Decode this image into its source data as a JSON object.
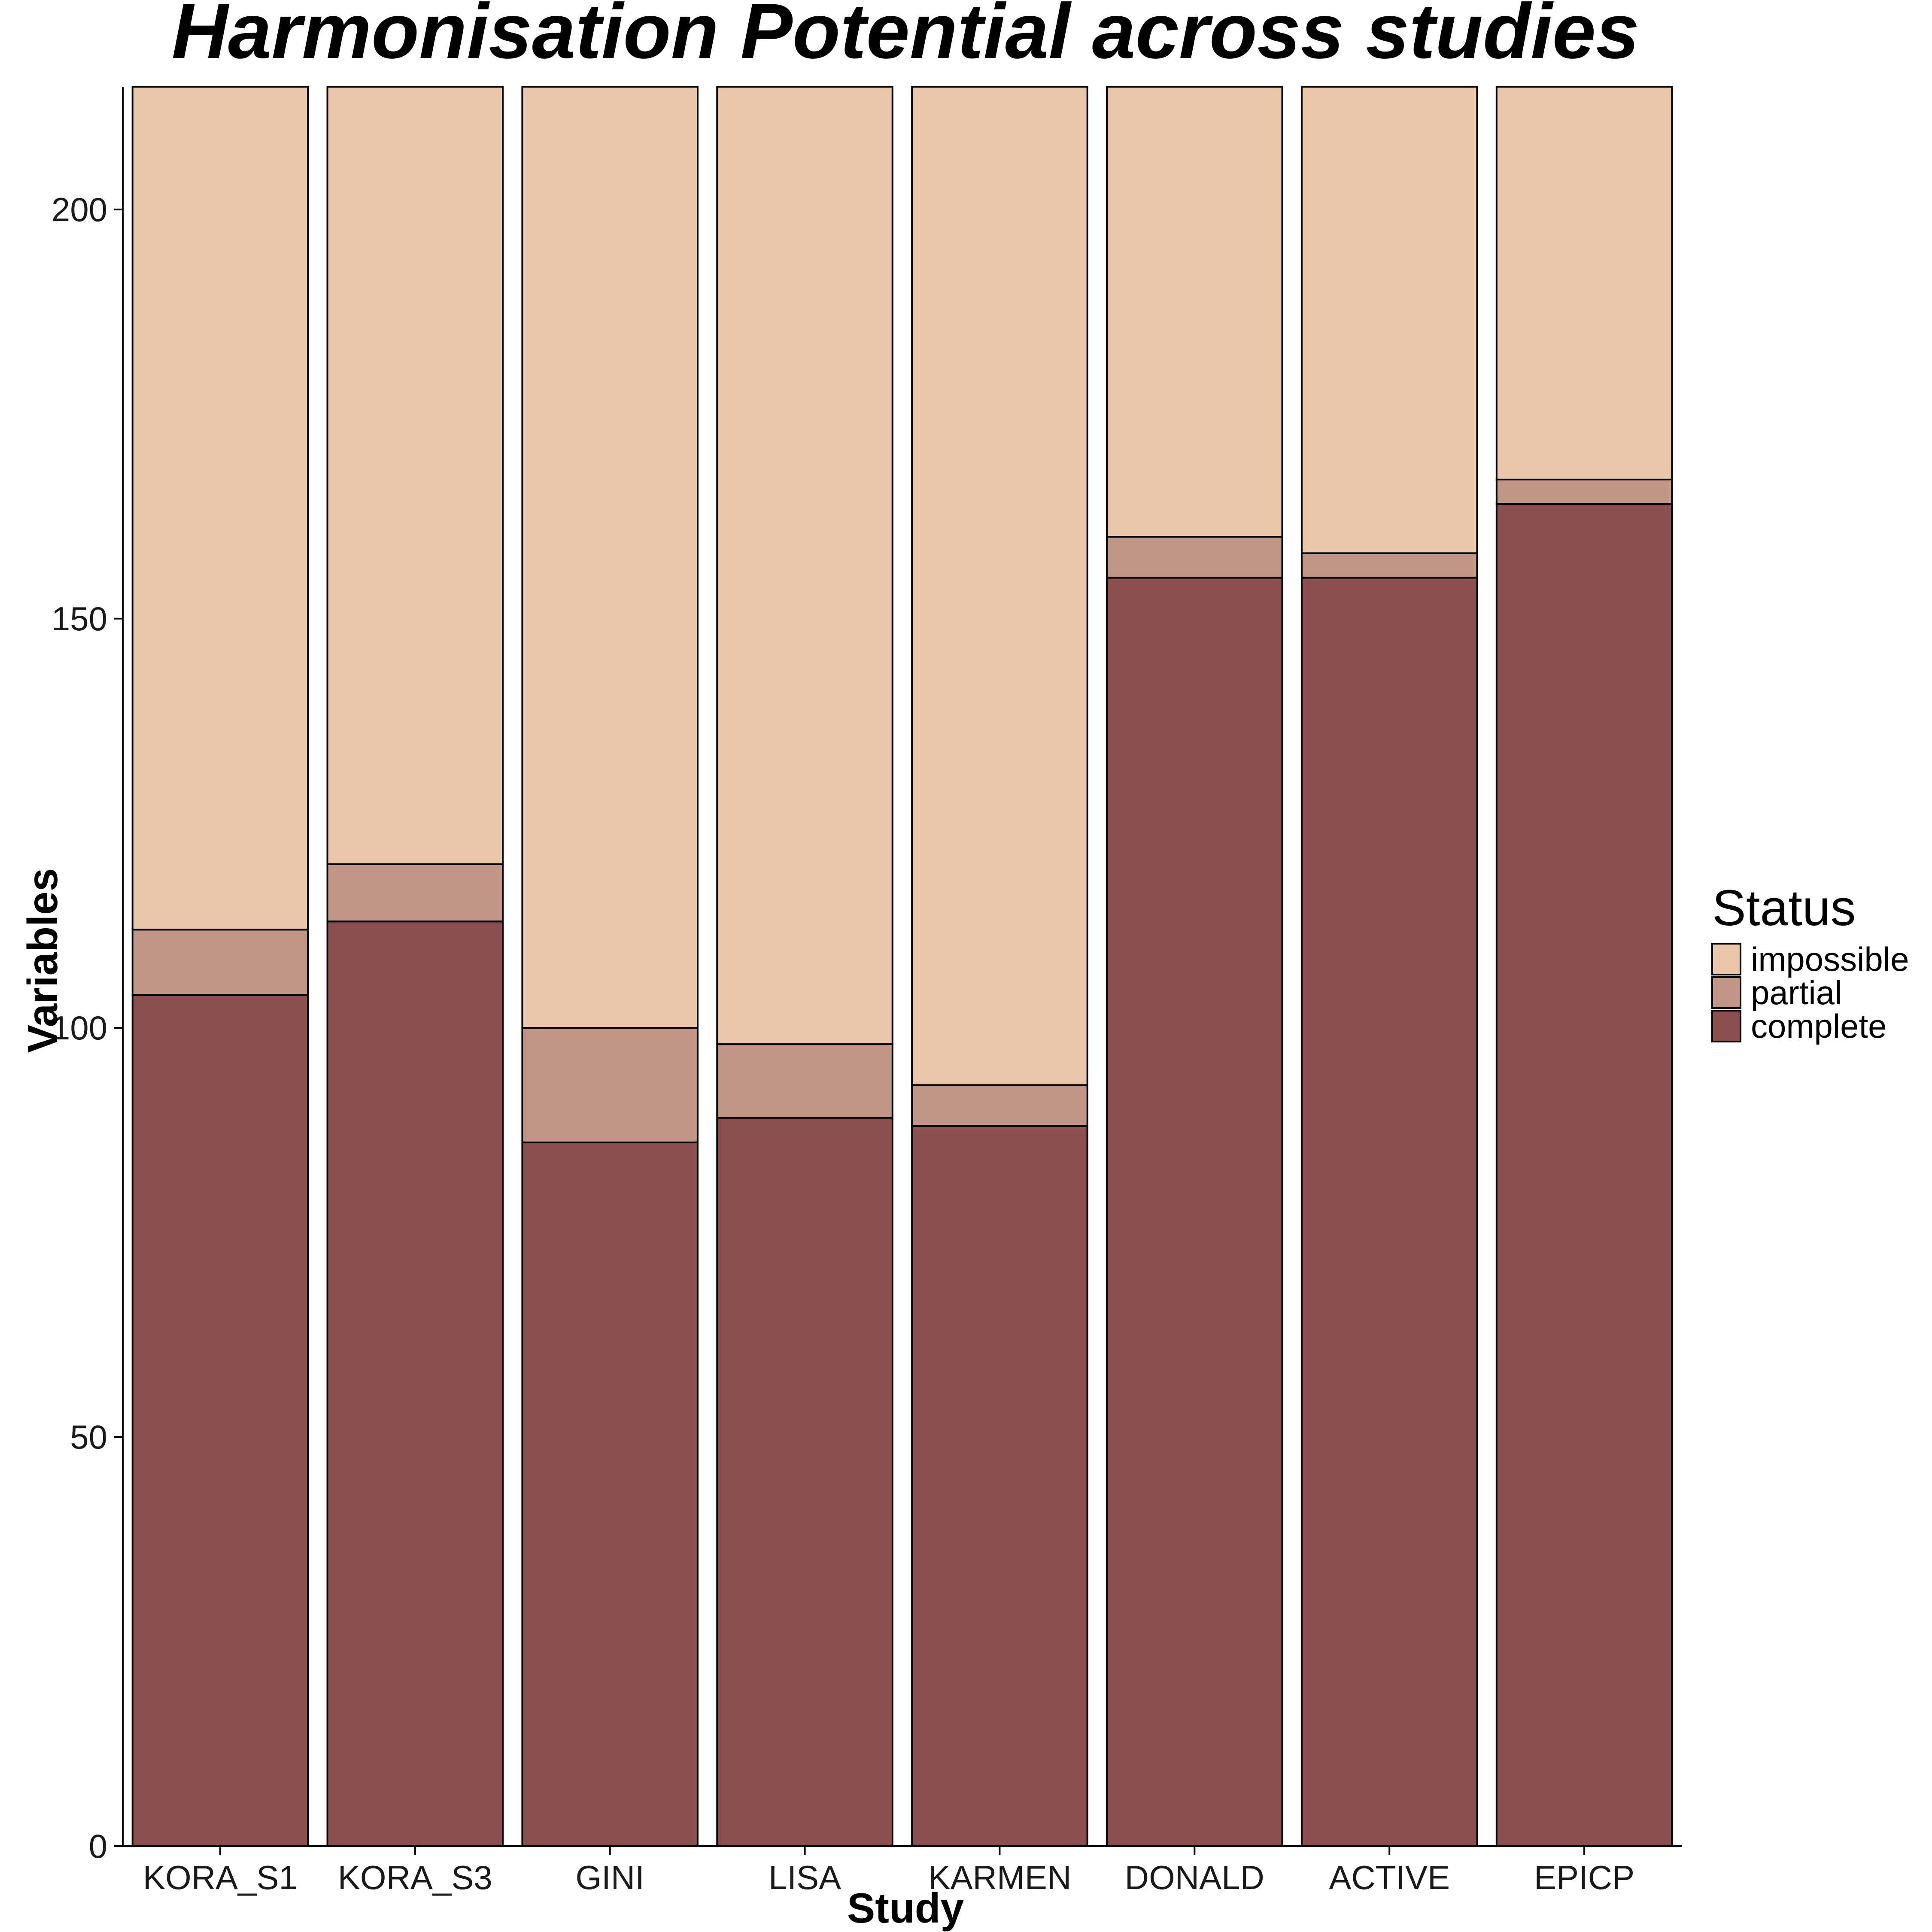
{
  "chart_data": {
    "type": "bar",
    "stacked": true,
    "title": "Harmonisation Potential across studies",
    "xlabel": "Study",
    "ylabel": "Variables",
    "categories": [
      "KORA_S1",
      "KORA_S3",
      "GINI",
      "LISA",
      "KARMEN",
      "DONALD",
      "ACTIVE",
      "EPICP"
    ],
    "series": [
      {
        "name": "complete",
        "color": "#8B4F4D",
        "values": [
          104,
          113,
          86,
          89,
          88,
          155,
          155,
          164
        ]
      },
      {
        "name": "partial",
        "color": "#C29785",
        "values": [
          8,
          7,
          14,
          9,
          5,
          5,
          3,
          3
        ]
      },
      {
        "name": "impossible",
        "color": "#E8C8A9",
        "values": [
          103,
          95,
          115,
          117,
          122,
          55,
          57,
          48
        ]
      }
    ],
    "ylim": [
      0,
      215
    ],
    "yticks": [
      0,
      50,
      100,
      150,
      200
    ],
    "grid": false,
    "legend": {
      "title": "Status",
      "position": "right",
      "order": [
        "impossible",
        "partial",
        "complete"
      ]
    }
  }
}
